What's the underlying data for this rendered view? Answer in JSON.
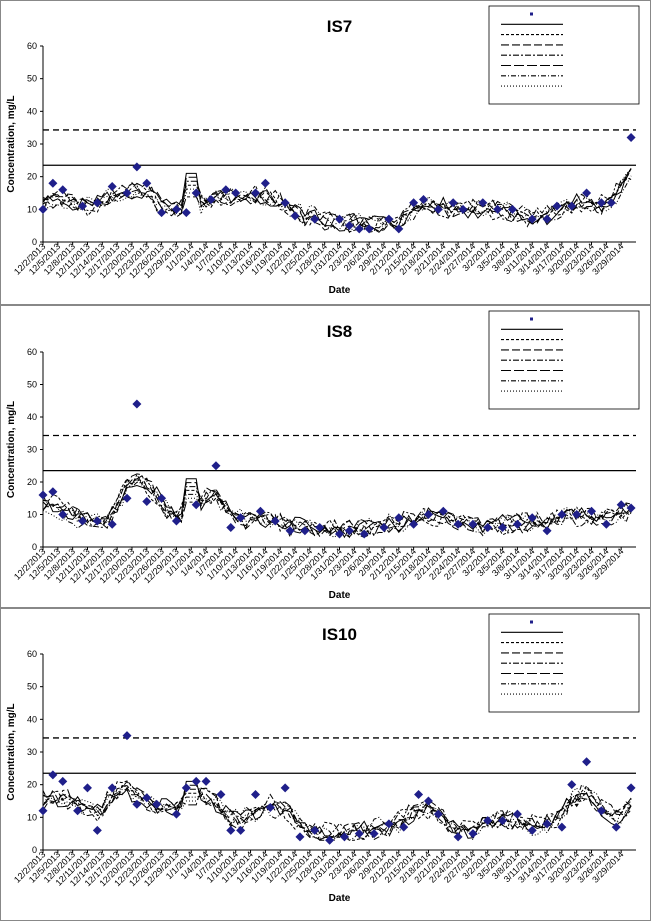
{
  "x_labels": [
    "12/2/2013",
    "12/5/2013",
    "12/8/2013",
    "12/11/2013",
    "12/14/2013",
    "12/17/2013",
    "12/20/2013",
    "12/23/2013",
    "12/26/2013",
    "12/29/2013",
    "1/1/2014",
    "1/4/2014",
    "1/7/2014",
    "1/10/2014",
    "1/13/2014",
    "1/16/2014",
    "1/19/2014",
    "1/22/2014",
    "1/25/2014",
    "1/28/2014",
    "1/31/2014",
    "2/3/2014",
    "2/6/2014",
    "2/9/2014",
    "2/12/2014",
    "2/15/2014",
    "2/18/2014",
    "2/21/2014",
    "2/24/2014",
    "2/27/2014",
    "3/2/2014",
    "3/5/2014",
    "3/8/2014",
    "3/11/2014",
    "3/14/2014",
    "3/17/2014",
    "3/20/2014",
    "3/23/2014",
    "3/26/2014",
    "3/29/2014"
  ],
  "y_ticks": [
    "0",
    "10",
    "20",
    "30",
    "40",
    "50",
    "60"
  ],
  "colors": {
    "observed": "#1f1f8a",
    "line": "#000000",
    "frame": "#000000"
  },
  "chart_data": [
    {
      "type": "line",
      "title": "IS7",
      "xlabel": "Date",
      "ylabel": "Concentration, mg/L",
      "ylim": [
        0,
        60
      ],
      "x_range": [
        "12/2/2013",
        "4/1/2014"
      ],
      "grid": false,
      "legend_position": "top-right",
      "legend_entries": [
        "",
        "",
        "",
        "",
        "",
        "",
        "",
        ""
      ],
      "reference_lines": [
        {
          "style": "solid",
          "value": 23.5
        },
        {
          "style": "dashed",
          "value": 34.3
        }
      ],
      "observed": {
        "x": [
          "12/2/2013",
          "12/4/2013",
          "12/6/2013",
          "12/10/2013",
          "12/13/2013",
          "12/16/2013",
          "12/19/2013",
          "12/21/2013",
          "12/23/2013",
          "12/26/2013",
          "12/29/2013",
          "12/31/2013",
          "1/2/2014",
          "1/5/2014",
          "1/8/2014",
          "1/10/2014",
          "1/14/2014",
          "1/16/2014",
          "1/20/2014",
          "1/22/2014",
          "1/26/2014",
          "1/31/2014",
          "2/2/2014",
          "2/4/2014",
          "2/6/2014",
          "2/10/2014",
          "2/12/2014",
          "2/15/2014",
          "2/17/2014",
          "2/20/2014",
          "2/23/2014",
          "2/25/2014",
          "3/1/2014",
          "3/4/2014",
          "3/7/2014",
          "3/11/2014",
          "3/14/2014",
          "3/16/2014",
          "3/19/2014",
          "3/22/2014",
          "3/25/2014",
          "3/27/2014",
          "3/31/2014"
        ],
        "y": [
          10,
          18,
          16,
          11,
          12,
          17,
          15,
          23,
          18,
          9,
          10,
          9,
          15,
          13,
          16,
          15,
          15,
          18,
          12,
          8,
          7,
          7,
          5,
          4,
          4,
          7,
          4,
          12,
          13,
          10,
          12,
          10,
          12,
          10,
          10,
          7,
          7,
          11,
          11,
          15,
          12,
          12,
          32
        ]
      }
    },
    {
      "type": "line",
      "title": "IS8",
      "xlabel": "Date",
      "ylabel": "Concentration, mg/L",
      "ylim": [
        0,
        60
      ],
      "x_range": [
        "12/2/2013",
        "4/1/2014"
      ],
      "grid": false,
      "legend_position": "top-right",
      "legend_entries": [
        "",
        "",
        "",
        "",
        "",
        "",
        "",
        ""
      ],
      "reference_lines": [
        {
          "style": "solid",
          "value": 23.5
        },
        {
          "style": "dashed",
          "value": 34.3
        }
      ],
      "observed": {
        "x": [
          "12/2/2013",
          "12/4/2013",
          "12/6/2013",
          "12/10/2013",
          "12/13/2013",
          "12/16/2013",
          "12/19/2013",
          "12/21/2013",
          "12/23/2013",
          "12/26/2013",
          "12/29/2013",
          "1/2/2014",
          "1/6/2014",
          "1/9/2014",
          "1/11/2014",
          "1/15/2014",
          "1/18/2014",
          "1/21/2014",
          "1/24/2014",
          "1/27/2014",
          "1/31/2014",
          "2/2/2014",
          "2/5/2014",
          "2/9/2014",
          "2/12/2014",
          "2/15/2014",
          "2/18/2014",
          "2/21/2014",
          "2/24/2014",
          "2/27/2014",
          "3/2/2014",
          "3/5/2014",
          "3/8/2014",
          "3/11/2014",
          "3/14/2014",
          "3/17/2014",
          "3/20/2014",
          "3/23/2014",
          "3/26/2014",
          "3/29/2014",
          "3/31/2014"
        ],
        "y": [
          16,
          17,
          10,
          8,
          8,
          7,
          15,
          44,
          14,
          15,
          8,
          13,
          25,
          6,
          9,
          11,
          8,
          5,
          5,
          6,
          4,
          5,
          4,
          6,
          9,
          7,
          10,
          11,
          7,
          7,
          6,
          6,
          7,
          9,
          5,
          10,
          10,
          11,
          7,
          13,
          12
        ]
      }
    },
    {
      "type": "line",
      "title": "IS10",
      "xlabel": "Date",
      "ylabel": "Concentration, mg/L",
      "ylim": [
        0,
        60
      ],
      "x_range": [
        "12/2/2013",
        "4/1/2014"
      ],
      "grid": false,
      "legend_position": "top-right",
      "legend_entries": [
        "",
        "",
        "",
        "",
        "",
        "",
        "",
        ""
      ],
      "reference_lines": [
        {
          "style": "solid",
          "value": 23.5
        },
        {
          "style": "dashed",
          "value": 34.3
        }
      ],
      "observed": {
        "x": [
          "12/2/2013",
          "12/4/2013",
          "12/6/2013",
          "12/9/2013",
          "12/11/2013",
          "12/13/2013",
          "12/16/2013",
          "12/19/2013",
          "12/21/2013",
          "12/23/2013",
          "12/25/2013",
          "12/29/2013",
          "12/31/2013",
          "1/2/2014",
          "1/4/2014",
          "1/7/2014",
          "1/9/2014",
          "1/11/2014",
          "1/14/2014",
          "1/17/2014",
          "1/20/2014",
          "1/23/2014",
          "1/26/2014",
          "1/29/2014",
          "2/1/2014",
          "2/4/2014",
          "2/7/2014",
          "2/10/2014",
          "2/13/2014",
          "2/16/2014",
          "2/18/2014",
          "2/20/2014",
          "2/24/2014",
          "2/27/2014",
          "3/2/2014",
          "3/5/2014",
          "3/8/2014",
          "3/11/2014",
          "3/14/2014",
          "3/17/2014",
          "3/19/2014",
          "3/22/2014",
          "3/25/2014",
          "3/28/2014",
          "3/31/2014"
        ],
        "y": [
          12,
          23,
          21,
          12,
          19,
          6,
          19,
          35,
          14,
          16,
          14,
          11,
          19,
          21,
          21,
          17,
          6,
          6,
          17,
          13,
          19,
          4,
          6,
          3,
          4,
          5,
          5,
          8,
          7,
          17,
          15,
          11,
          4,
          5,
          9,
          9,
          11,
          6,
          8,
          7,
          20,
          27,
          12,
          7,
          19
        ]
      }
    }
  ]
}
